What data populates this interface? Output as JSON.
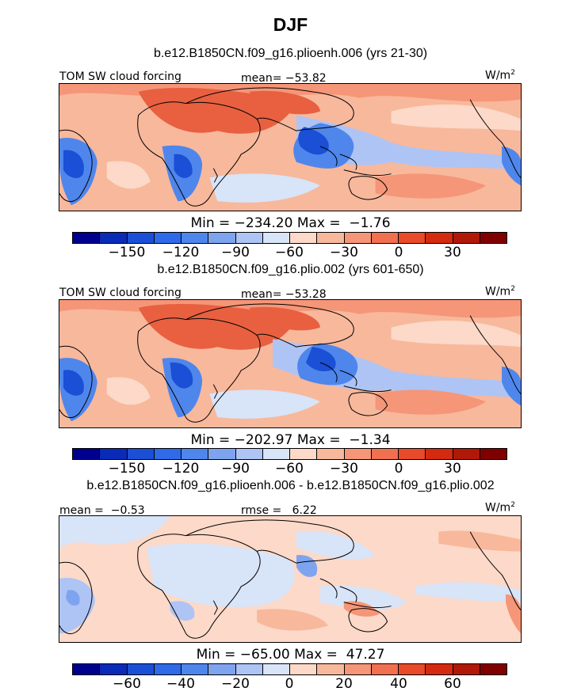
{
  "title": "DJF",
  "panels": [
    {
      "subtitle": "b.e12.B1850CN.f09_g16.plioenh.006 (yrs 21-30)",
      "left_label": "TOM SW cloud forcing",
      "stat_label": "mean= −53.82",
      "unit_base": "W/m",
      "unit_exp": "2",
      "minmax": "Min = −234.20 Max =  −1.76",
      "colorbar_ticks": [
        "−150",
        "−120",
        "−90",
        "−60",
        "−30",
        "0",
        "30"
      ]
    },
    {
      "subtitle": "b.e12.B1850CN.f09_g16.plio.002 (yrs 601-650)",
      "left_label": "TOM SW cloud forcing",
      "stat_label": "mean= −53.28",
      "unit_base": "W/m",
      "unit_exp": "2",
      "minmax": "Min = −202.97 Max =  −1.34",
      "colorbar_ticks": [
        "−150",
        "−120",
        "−90",
        "−60",
        "−30",
        "0",
        "30"
      ]
    },
    {
      "subtitle": "b.e12.B1850CN.f09_g16.plioenh.006 - b.e12.B1850CN.f09_g16.plio.002",
      "left_label": "mean =  −0.53",
      "stat_label": "rmse =   6.22",
      "unit_base": "W/m",
      "unit_exp": "2",
      "minmax": "Min = −65.00 Max =  47.27",
      "colorbar_ticks": [
        "−60",
        "−40",
        "−20",
        "0",
        "20",
        "40",
        "60"
      ]
    }
  ],
  "colors": {
    "scale": [
      "#00008f",
      "#0a2ab8",
      "#1a4fd6",
      "#2f6ae8",
      "#4f86ec",
      "#7ea4f0",
      "#aec4f4",
      "#d8e4f8",
      "#fcd9c8",
      "#f8b89c",
      "#f59678",
      "#f07050",
      "#e84a2a",
      "#d42a10",
      "#b01808",
      "#800000"
    ],
    "coast": "#000000"
  }
}
